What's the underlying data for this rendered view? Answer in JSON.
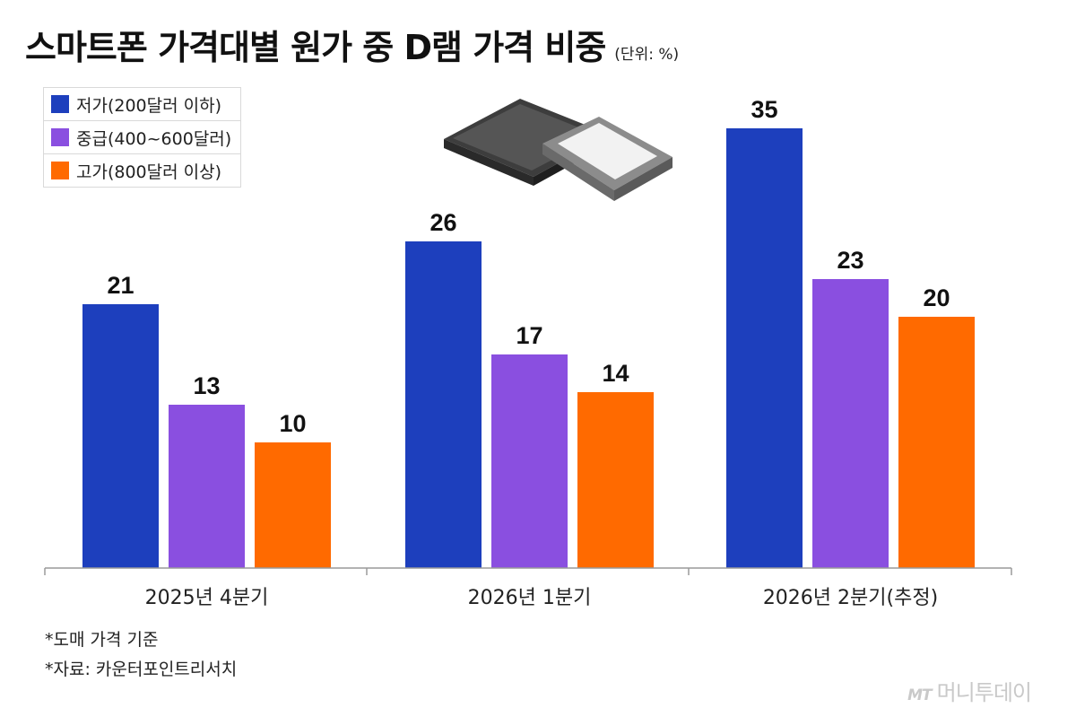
{
  "title": "스마트폰 가격대별 원가 중 D램 가격 비중",
  "unit": "(단위: %)",
  "chart_data": {
    "type": "bar",
    "title": "스마트폰 가격대별 원가 중 D램 가격 비중",
    "unit": "%",
    "categories": [
      "2025년 4분기",
      "2026년 1분기",
      "2026년 2분기(추정)"
    ],
    "series": [
      {
        "name": "저가(200달러 이하)",
        "color": "#1d3fbd",
        "values": [
          21,
          26,
          35
        ]
      },
      {
        "name": "중급(400~600달러)",
        "color": "#8a4fe0",
        "values": [
          13,
          17,
          23
        ]
      },
      {
        "name": "고가(800달러 이상)",
        "color": "#ff6a00",
        "values": [
          10,
          14,
          20
        ]
      }
    ],
    "ylim": [
      0,
      35
    ],
    "grid": false,
    "legend_position": "top-left",
    "data_labels": true
  },
  "notes": [
    "*도매 가격 기준",
    "*자료: 카운터포인트리서치"
  ],
  "watermark": {
    "logo": "MT",
    "text": "머니투데이"
  }
}
